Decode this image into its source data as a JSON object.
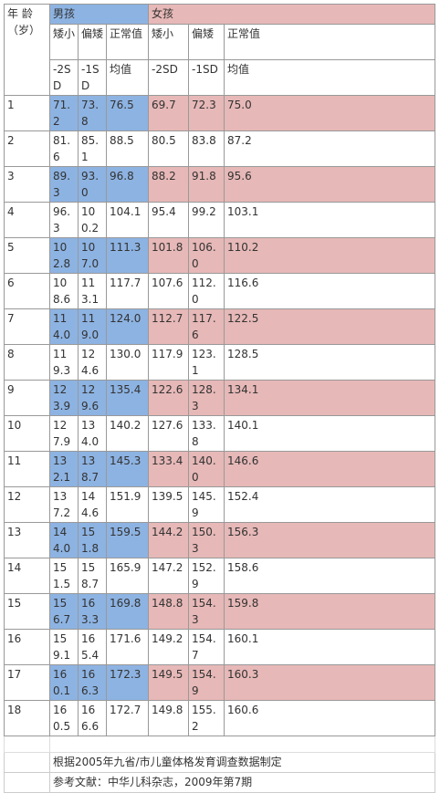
{
  "header": {
    "age_label": "年 龄",
    "age_unit": "（岁）",
    "boys": "男孩",
    "girls": "女孩",
    "columns": [
      "矮小",
      "偏矮",
      "正常值",
      "矮小",
      "偏矮",
      "正常值"
    ],
    "stats": [
      "-2SD",
      "-1SD",
      "均值",
      "-2SD",
      "-1SD",
      "均值"
    ]
  },
  "table": {
    "rows": [
      [
        "1",
        "71.2",
        "73.8",
        "76.5",
        "69.7",
        "72.3",
        "75.0"
      ],
      [
        "2",
        "81.6",
        "85.1",
        "88.5",
        "80.5",
        "83.8",
        "87.2"
      ],
      [
        "3",
        "89.3",
        "93.0",
        "96.8",
        "88.2",
        "91.8",
        "95.6"
      ],
      [
        "4",
        "96.3",
        "100.2",
        "104.1",
        "95.4",
        "99.2",
        "103.1"
      ],
      [
        "5",
        "102.8",
        "107.0",
        "111.3",
        "101.8",
        "106.0",
        "110.2"
      ],
      [
        "6",
        "108.6",
        "113.1",
        "117.7",
        "107.6",
        "112.0",
        "116.6"
      ],
      [
        "7",
        "114.0",
        "119.0",
        "124.0",
        "112.7",
        "117.6",
        "122.5"
      ],
      [
        "8",
        "119.3",
        "124.6",
        "130.0",
        "117.9",
        "123.1",
        "128.5"
      ],
      [
        "9",
        "123.9",
        "129.6",
        "135.4",
        "122.6",
        "128.3",
        "134.1"
      ],
      [
        "10",
        "127.9",
        "134.0",
        "140.2",
        "127.6",
        "133.8",
        "140.1"
      ],
      [
        "11",
        "132.1",
        "138.7",
        "145.3",
        "133.4",
        "140.0",
        "146.6"
      ],
      [
        "12",
        "137.2",
        "144.6",
        "151.9",
        "139.5",
        "145.9",
        "152.4"
      ],
      [
        "13",
        "144.0",
        "151.8",
        "159.5",
        "144.2",
        "150.3",
        "156.3"
      ],
      [
        "14",
        "151.5",
        "158.7",
        "165.9",
        "147.2",
        "152.9",
        "158.6"
      ],
      [
        "15",
        "156.7",
        "163.3",
        "169.8",
        "148.8",
        "154.3",
        "159.8"
      ],
      [
        "16",
        "159.1",
        "165.4",
        "171.6",
        "149.2",
        "154.7",
        "160.1"
      ],
      [
        "17",
        "160.1",
        "166.3",
        "172.3",
        "149.5",
        "154.9",
        "160.3"
      ],
      [
        "18",
        "160.5",
        "166.6",
        "172.7",
        "149.8",
        "155.2",
        "160.6"
      ]
    ]
  },
  "footnotes": [
    "根据2005年九省/市儿童体格发育调查数据制定",
    "参考文献：中华儿科杂志，2009年第7期"
  ]
}
